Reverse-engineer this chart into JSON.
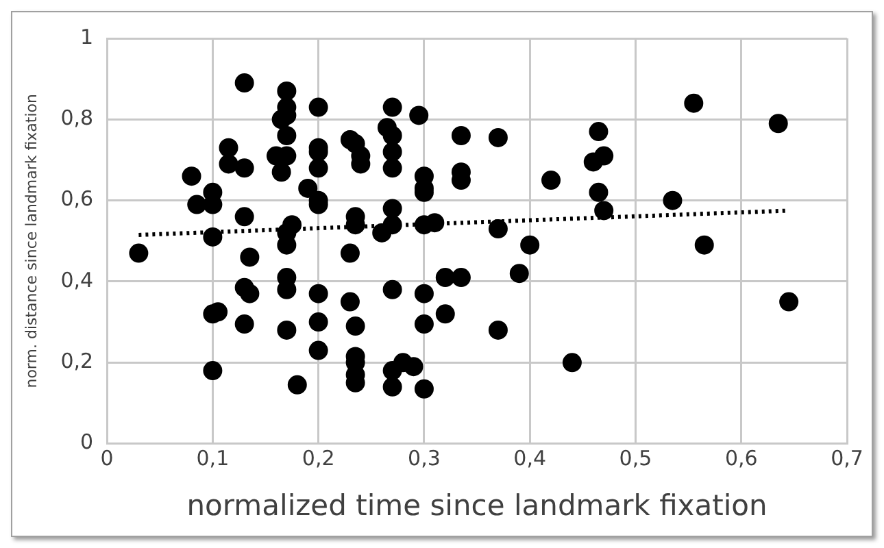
{
  "chart_data": {
    "type": "scatter",
    "xlabel": "normalized time since landmark fixation",
    "ylabel": "norm. distance since landmark fixation",
    "xlim": [
      0,
      0.7
    ],
    "xticks": [
      {
        "value": 0,
        "label": "0"
      },
      {
        "value": 0.1,
        "label": "0,1"
      },
      {
        "value": 0.2,
        "label": "0,2"
      },
      {
        "value": 0.3,
        "label": "0,3"
      },
      {
        "value": 0.4,
        "label": "0,4"
      },
      {
        "value": 0.5,
        "label": "0,5"
      },
      {
        "value": 0.6,
        "label": "0,6"
      },
      {
        "value": 0.7,
        "label": "0,7"
      }
    ],
    "ylim": [
      0,
      1
    ],
    "yticks": [
      {
        "value": 0,
        "label": "0"
      },
      {
        "value": 0.2,
        "label": "0,2"
      },
      {
        "value": 0.4,
        "label": "0,4"
      },
      {
        "value": 0.6,
        "label": "0,6"
      },
      {
        "value": 0.8,
        "label": "0,8"
      },
      {
        "value": 1,
        "label": "1"
      }
    ],
    "grid": true,
    "legend": false,
    "series": [
      {
        "type": "scatter",
        "color": "#000000",
        "marker": "circle",
        "x": [
          0.03,
          0.08,
          0.085,
          0.1,
          0.1,
          0.1,
          0.1,
          0.105,
          0.1,
          0.115,
          0.115,
          0.13,
          0.13,
          0.13,
          0.135,
          0.13,
          0.135,
          0.13,
          0.16,
          0.165,
          0.165,
          0.17,
          0.17,
          0.17,
          0.17,
          0.17,
          0.175,
          0.17,
          0.17,
          0.17,
          0.17,
          0.17,
          0.18,
          0.19,
          0.2,
          0.2,
          0.2,
          0.2,
          0.2,
          0.2,
          0.2,
          0.2,
          0.2,
          0.23,
          0.235,
          0.24,
          0.24,
          0.235,
          0.235,
          0.23,
          0.23,
          0.235,
          0.235,
          0.235,
          0.235,
          0.235,
          0.26,
          0.265,
          0.27,
          0.27,
          0.27,
          0.27,
          0.27,
          0.27,
          0.27,
          0.27,
          0.27,
          0.28,
          0.29,
          0.295,
          0.3,
          0.3,
          0.3,
          0.3,
          0.3,
          0.3,
          0.3,
          0.31,
          0.32,
          0.32,
          0.335,
          0.335,
          0.335,
          0.335,
          0.37,
          0.37,
          0.37,
          0.39,
          0.4,
          0.42,
          0.44,
          0.46,
          0.465,
          0.465,
          0.47,
          0.47,
          0.535,
          0.555,
          0.565,
          0.635,
          0.645
        ],
        "values": [
          0.47,
          0.66,
          0.59,
          0.62,
          0.59,
          0.51,
          0.32,
          0.325,
          0.18,
          0.73,
          0.69,
          0.89,
          0.68,
          0.56,
          0.46,
          0.385,
          0.37,
          0.295,
          0.71,
          0.67,
          0.8,
          0.87,
          0.83,
          0.81,
          0.76,
          0.71,
          0.54,
          0.52,
          0.49,
          0.41,
          0.38,
          0.28,
          0.145,
          0.63,
          0.83,
          0.73,
          0.72,
          0.68,
          0.6,
          0.59,
          0.37,
          0.3,
          0.23,
          0.75,
          0.74,
          0.71,
          0.69,
          0.56,
          0.54,
          0.47,
          0.35,
          0.29,
          0.215,
          0.2,
          0.17,
          0.15,
          0.52,
          0.78,
          0.83,
          0.76,
          0.72,
          0.68,
          0.58,
          0.54,
          0.38,
          0.18,
          0.14,
          0.2,
          0.19,
          0.81,
          0.66,
          0.63,
          0.62,
          0.54,
          0.37,
          0.295,
          0.135,
          0.545,
          0.41,
          0.32,
          0.76,
          0.67,
          0.65,
          0.41,
          0.755,
          0.53,
          0.28,
          0.42,
          0.49,
          0.65,
          0.2,
          0.695,
          0.77,
          0.62,
          0.71,
          0.575,
          0.6,
          0.84,
          0.49,
          0.79,
          0.35
        ]
      },
      {
        "type": "line",
        "color": "#000000",
        "marker": "none",
        "line_style": "dotted",
        "x": [
          0.03,
          0.645
        ],
        "values": [
          0.515,
          0.575
        ]
      }
    ]
  }
}
